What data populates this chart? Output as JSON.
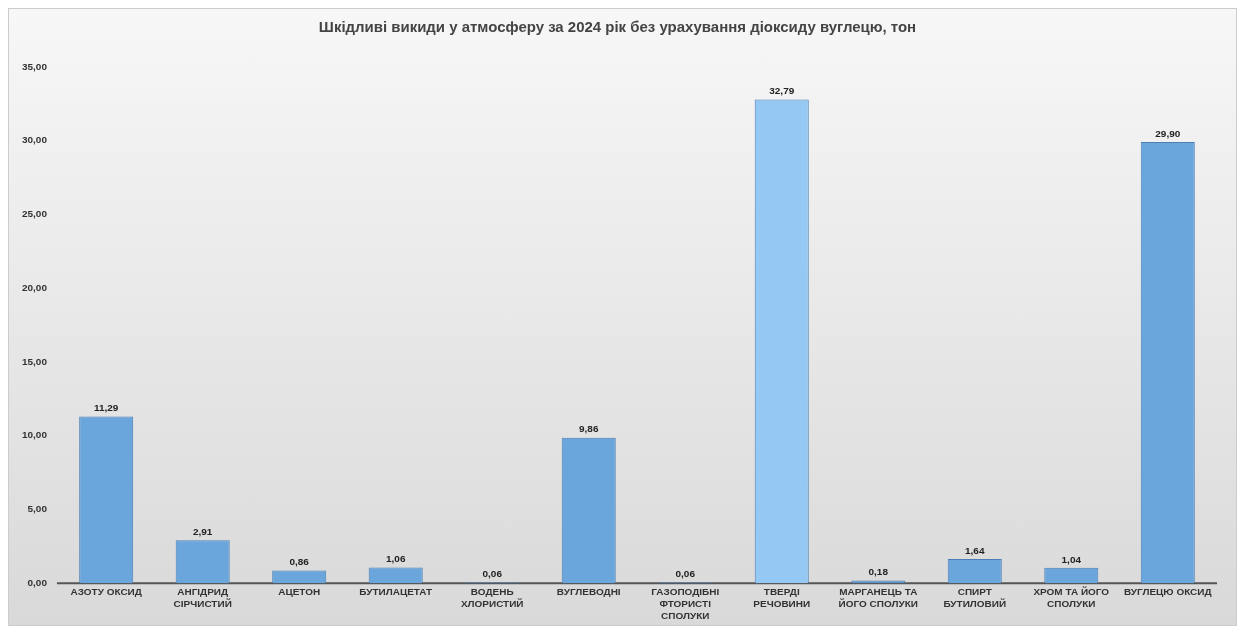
{
  "chart_data": {
    "type": "bar",
    "title": "Шкідливі викиди у атмосферу за 2024 рік без урахування діоксиду вуглецю, тон",
    "categories": [
      "АЗОТУ ОКСИД",
      "АНГІДРИД СІРЧИСТИЙ",
      "АЦЕТОН",
      "БУТИЛАЦЕТАТ",
      "ВОДЕНЬ ХЛОРИСТИЙ",
      "ВУГЛЕВОДНІ",
      "ГАЗОПОДІБНІ ФТОРИСТІ СПОЛУКИ",
      "ТВЕРДІ РЕЧОВИНИ",
      "МАРГАНЕЦЬ ТА ЙОГО СПОЛУКИ",
      "СПИРТ БУТИЛОВИЙ",
      "ХРОМ ТА ЙОГО СПОЛУКИ",
      "ВУГЛЕЦЮ ОКСИД"
    ],
    "values": [
      11.29,
      2.91,
      0.86,
      1.06,
      0.06,
      9.86,
      0.06,
      32.79,
      0.18,
      1.64,
      1.04,
      29.9
    ],
    "colors": [
      "#6aa5dc",
      "#6aa5dc",
      "#6aa5dc",
      "#6aa5dc",
      "#5b93c9",
      "#6aa5dc",
      "#5b93c9",
      "#95c8f2",
      "#5b93c9",
      "#6aa5dc",
      "#6aa5dc",
      "#6aa5dc"
    ],
    "ylim": [
      0,
      35
    ],
    "yticks": [
      {
        "value": 0,
        "label": "0,00"
      },
      {
        "value": 5,
        "label": "5,00"
      },
      {
        "value": 10,
        "label": "10,00"
      },
      {
        "value": 15,
        "label": "15,00"
      },
      {
        "value": 20,
        "label": "20,00"
      },
      {
        "value": 25,
        "label": "25,00"
      },
      {
        "value": 30,
        "label": "30,00"
      },
      {
        "value": 35,
        "label": "35,00"
      }
    ],
    "value_labels": [
      "11,29",
      "2,91",
      "0,86",
      "1,06",
      "0,06",
      "9,86",
      "0,06",
      "32,79",
      "0,18",
      "1,64",
      "1,04",
      "29,90"
    ],
    "grid": false,
    "legend": false
  }
}
